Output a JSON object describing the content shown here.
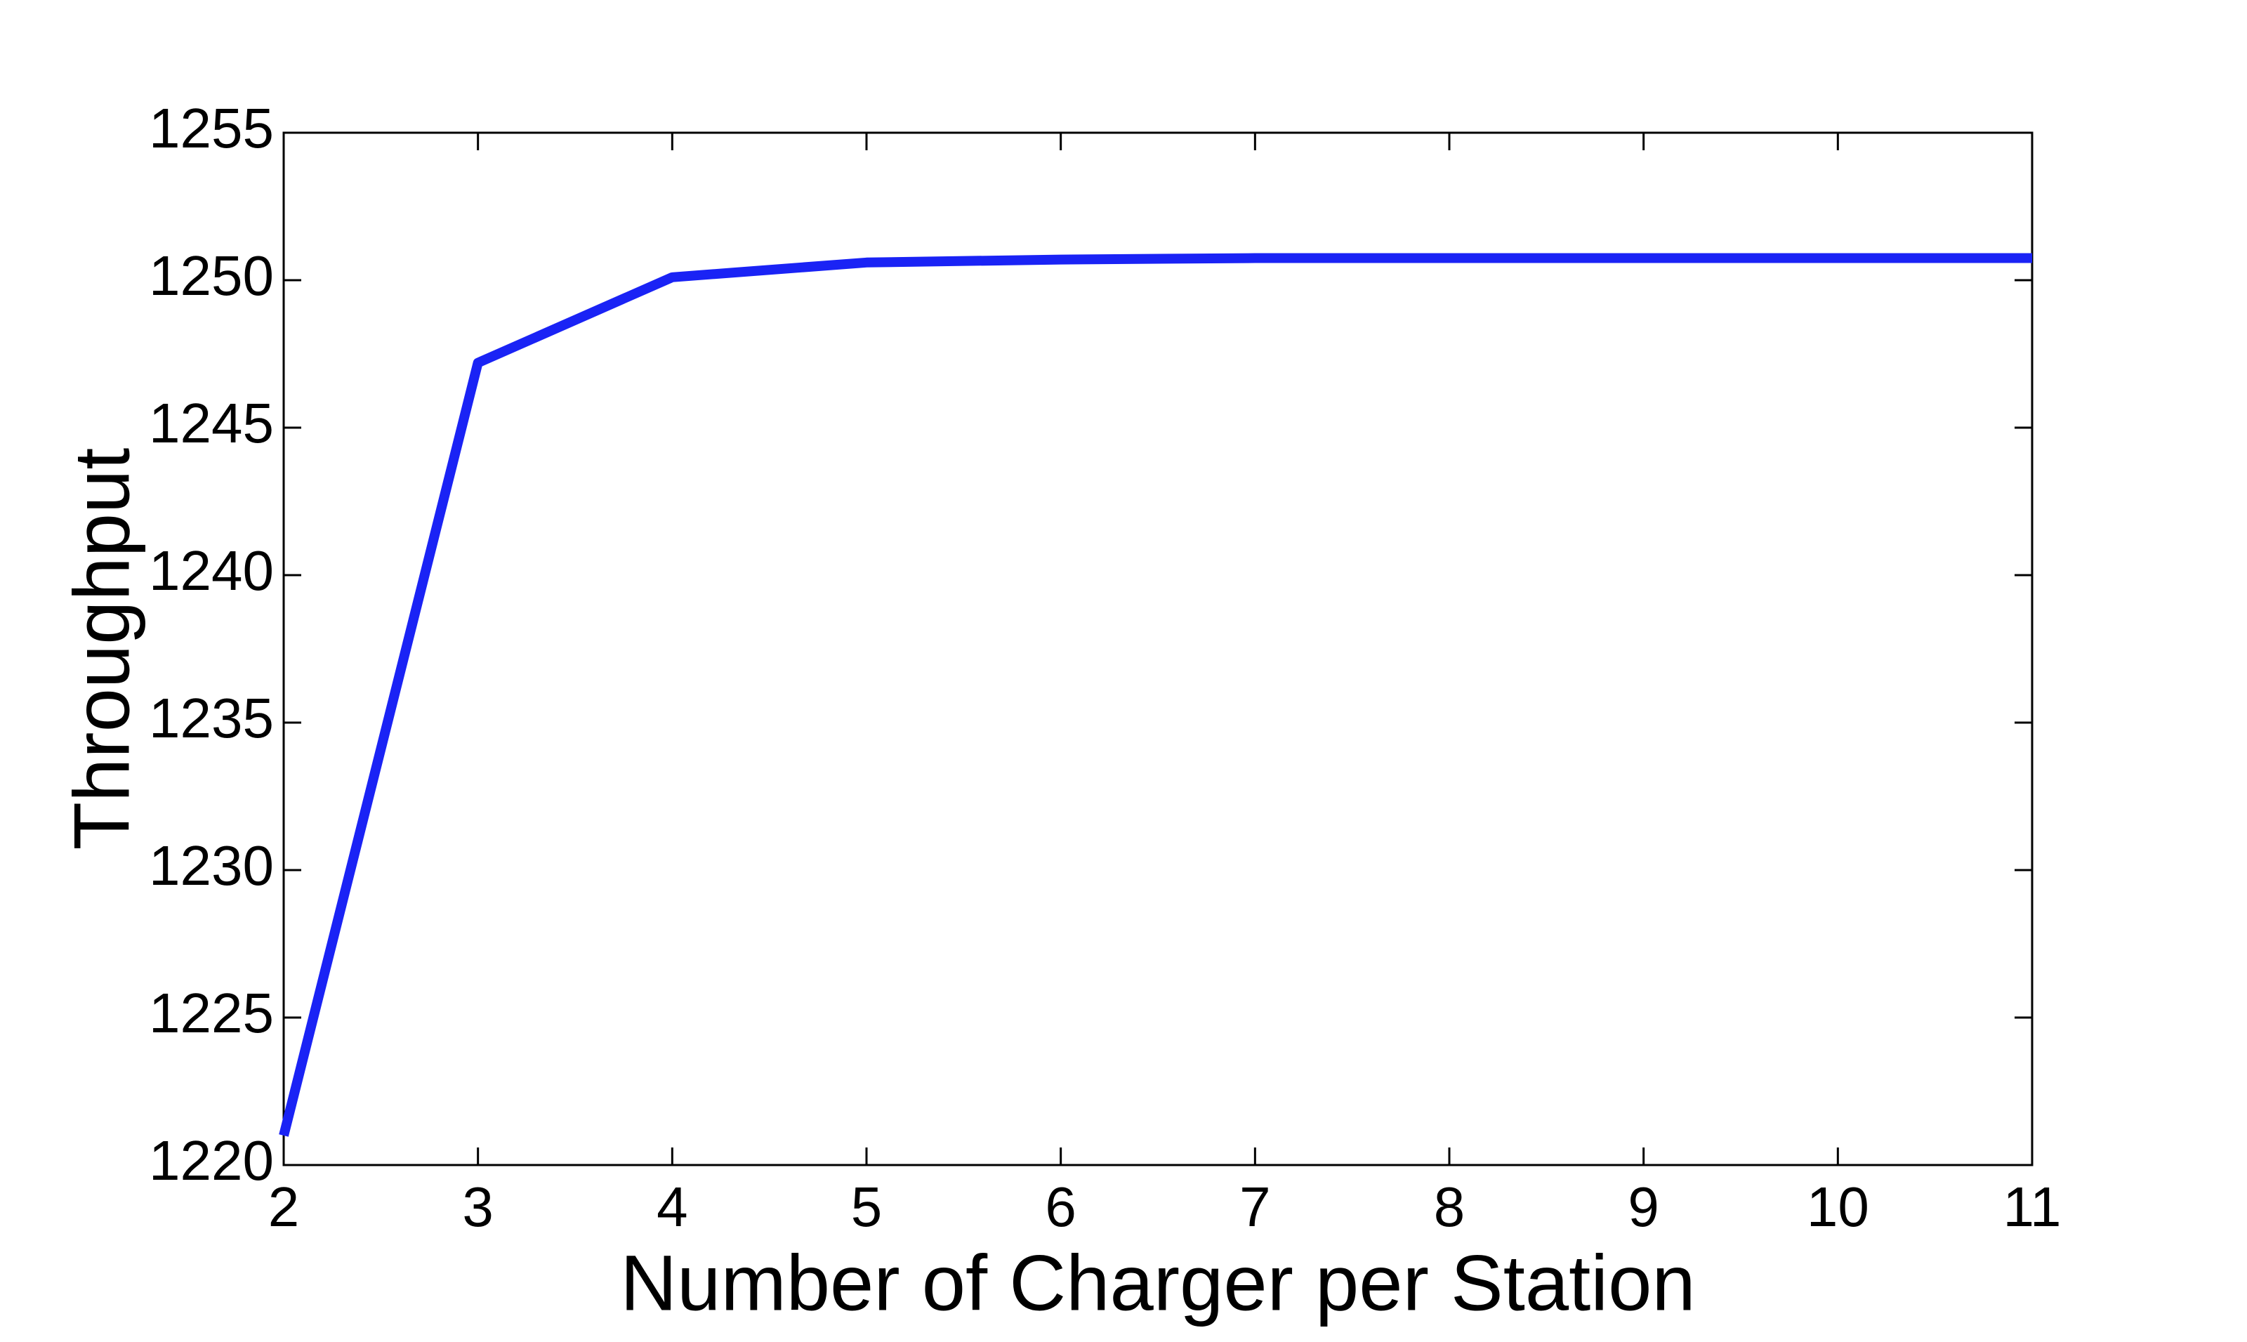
{
  "chart_data": {
    "type": "line",
    "x_label": "Number of Charger per Station",
    "y_label": "Throughput",
    "x": [
      2,
      3,
      4,
      5,
      6,
      7,
      8,
      9,
      10,
      11
    ],
    "series": [
      {
        "name": "Throughput",
        "color": "#1a23f5",
        "values": [
          1221,
          1247.2,
          1250.1,
          1250.6,
          1250.7,
          1250.75,
          1250.75,
          1250.75,
          1250.75,
          1250.75
        ]
      }
    ],
    "xlim": [
      2,
      11
    ],
    "xticks": [
      2,
      3,
      4,
      5,
      6,
      7,
      8,
      9,
      10,
      11
    ],
    "ylim": [
      1220,
      1255
    ],
    "yticks": [
      1220,
      1225,
      1230,
      1235,
      1240,
      1245,
      1250,
      1255
    ],
    "grid": false
  }
}
